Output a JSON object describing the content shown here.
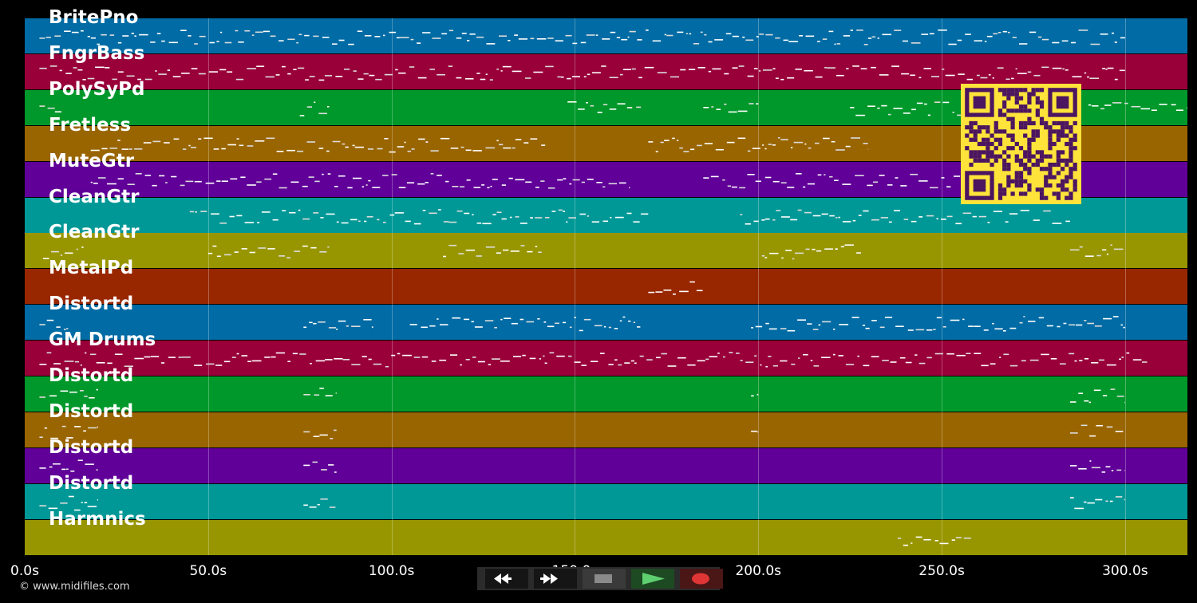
{
  "tracks": [
    {
      "name": "BritePno",
      "color": "#006ba4"
    },
    {
      "name": "FngrBass",
      "color": "#99003a"
    },
    {
      "name": "PolySyPd",
      "color": "#00982a"
    },
    {
      "name": "Fretless",
      "color": "#996500"
    },
    {
      "name": "MuteGtr",
      "color": "#600098"
    },
    {
      "name": "CleanGtr",
      "color": "#009896"
    },
    {
      "name": "CleanGtr",
      "color": "#989600"
    },
    {
      "name": "MetalPd",
      "color": "#982700"
    },
    {
      "name": "Distortd",
      "color": "#006ba4"
    },
    {
      "name": "GM Drums",
      "color": "#99003a"
    },
    {
      "name": "Distortd",
      "color": "#00982a"
    },
    {
      "name": "Distortd",
      "color": "#996500"
    },
    {
      "name": "Distortd",
      "color": "#600098"
    },
    {
      "name": "Distortd",
      "color": "#009896"
    },
    {
      "name": "Harmnics",
      "color": "#989600"
    }
  ],
  "timeline": {
    "ticks": [
      "0.0s",
      "50.0s",
      "100.0s",
      "150.0s",
      "200.0s",
      "250.0s",
      "300.0s"
    ],
    "tick_values": [
      0,
      50,
      100,
      150,
      200,
      250,
      300
    ],
    "max_seconds": 317
  },
  "copyright": "© www.midifiles.com",
  "transport": {
    "rewind_icon": "rewind-icon",
    "fast_forward_icon": "fast-forward-icon",
    "stop_icon": "stop-icon",
    "play_icon": "play-icon",
    "record_icon": "record-icon"
  },
  "qr_icon": "qr-code-icon"
}
